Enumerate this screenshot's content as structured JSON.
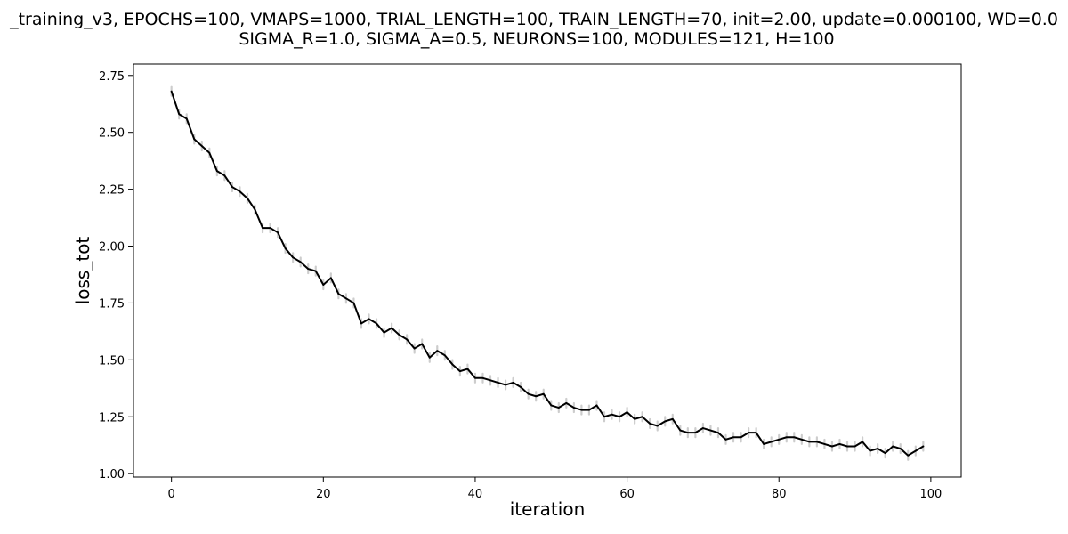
{
  "chart_data": {
    "type": "line",
    "title": "_training_v3, EPOCHS=100, VMAPS=1000, TRIAL_LENGTH=100, TRAIN_LENGTH=70, init=2.00, update=0.000100, WD=0.0",
    "subtitle": "SIGMA_R=1.0, SIGMA_A=0.5, NEURONS=100, MODULES=121, H=100",
    "xlabel": "iteration",
    "ylabel": "loss_tot",
    "xlim": [
      -5,
      104
    ],
    "ylim": [
      0.985,
      2.8
    ],
    "xticks": [
      0,
      20,
      40,
      60,
      80,
      100
    ],
    "yticks": [
      1.0,
      1.25,
      1.5,
      1.75,
      2.0,
      2.25,
      2.5,
      2.75
    ],
    "xtick_labels": [
      "0",
      "20",
      "40",
      "60",
      "80",
      "100"
    ],
    "ytick_labels": [
      "1.00",
      "1.25",
      "1.50",
      "1.75",
      "2.00",
      "2.25",
      "2.50",
      "2.75"
    ],
    "grid": false,
    "legend": false,
    "series": [
      {
        "color": "#000000",
        "error_color": "#c8c8c8",
        "x": [
          0,
          1,
          2,
          3,
          4,
          5,
          6,
          7,
          8,
          9,
          10,
          11,
          12,
          13,
          14,
          15,
          16,
          17,
          18,
          19,
          20,
          21,
          22,
          23,
          24,
          25,
          26,
          27,
          28,
          29,
          30,
          31,
          32,
          33,
          34,
          35,
          36,
          37,
          38,
          39,
          40,
          41,
          42,
          43,
          44,
          45,
          46,
          47,
          48,
          49,
          50,
          51,
          52,
          53,
          54,
          55,
          56,
          57,
          58,
          59,
          60,
          61,
          62,
          63,
          64,
          65,
          66,
          67,
          68,
          69,
          70,
          71,
          72,
          73,
          74,
          75,
          76,
          77,
          78,
          79,
          80,
          81,
          82,
          83,
          84,
          85,
          86,
          87,
          88,
          89,
          90,
          91,
          92,
          93,
          94,
          95,
          96,
          97,
          98,
          99
        ],
        "values": [
          2.68,
          2.58,
          2.56,
          2.47,
          2.44,
          2.41,
          2.33,
          2.31,
          2.26,
          2.24,
          2.21,
          2.16,
          2.08,
          2.08,
          2.06,
          1.99,
          1.95,
          1.93,
          1.9,
          1.89,
          1.83,
          1.86,
          1.79,
          1.77,
          1.75,
          1.66,
          1.68,
          1.66,
          1.62,
          1.64,
          1.61,
          1.59,
          1.55,
          1.57,
          1.51,
          1.54,
          1.52,
          1.48,
          1.45,
          1.46,
          1.42,
          1.42,
          1.41,
          1.4,
          1.39,
          1.4,
          1.38,
          1.35,
          1.34,
          1.35,
          1.3,
          1.29,
          1.31,
          1.29,
          1.28,
          1.28,
          1.3,
          1.25,
          1.26,
          1.25,
          1.27,
          1.24,
          1.25,
          1.22,
          1.21,
          1.23,
          1.24,
          1.19,
          1.18,
          1.18,
          1.2,
          1.19,
          1.18,
          1.15,
          1.16,
          1.16,
          1.18,
          1.18,
          1.13,
          1.14,
          1.15,
          1.16,
          1.16,
          1.15,
          1.14,
          1.14,
          1.13,
          1.12,
          1.13,
          1.12,
          1.12,
          1.14,
          1.1,
          1.11,
          1.09,
          1.12,
          1.11,
          1.08,
          1.1,
          1.12
        ]
      }
    ]
  }
}
